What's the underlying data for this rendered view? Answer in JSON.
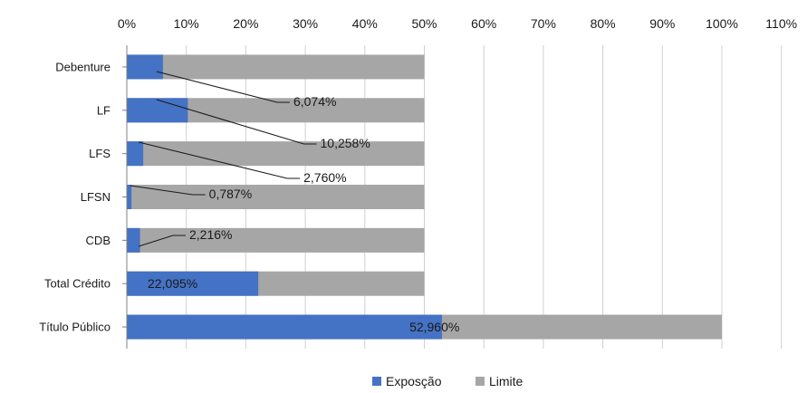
{
  "chart_data": {
    "type": "bar",
    "orientation": "horizontal",
    "stacking": "overlay",
    "categories": [
      "Debenture",
      "LF",
      "LFS",
      "LFSN",
      "CDB",
      "Total Crédito",
      "Título Público"
    ],
    "series": [
      {
        "name": "Exposção",
        "color": "#4472C4",
        "values": [
          6.074,
          10.258,
          2.76,
          0.787,
          2.216,
          22.095,
          52.96
        ]
      },
      {
        "name": "Limite",
        "color": "#A6A6A6",
        "values": [
          50,
          50,
          50,
          50,
          50,
          50,
          100
        ]
      }
    ],
    "data_labels": [
      "6,074%",
      "10,258%",
      "2,760%",
      "0,787%",
      "2,216%",
      "22,095%",
      "52,960%"
    ],
    "xticks": [
      "0%",
      "10%",
      "20%",
      "30%",
      "40%",
      "50%",
      "60%",
      "70%",
      "80%",
      "90%",
      "100%",
      "110%"
    ],
    "xlim": [
      0,
      110
    ],
    "x_axis_position": "top",
    "grid": true,
    "legend_position": "bottom"
  }
}
